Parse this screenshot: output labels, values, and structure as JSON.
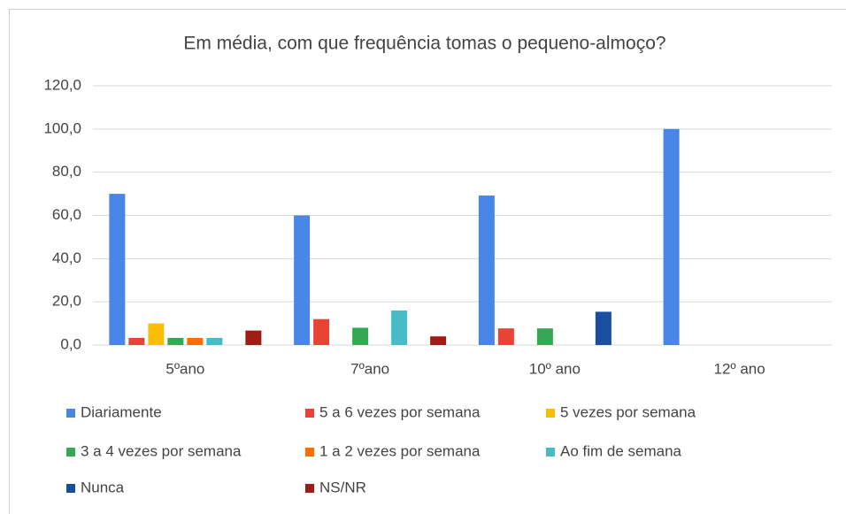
{
  "chart_data": {
    "type": "bar",
    "title": "Em média, com que frequência tomas o pequeno-almoço?",
    "categories": [
      "5ºano",
      "7ºano",
      "10º ano",
      "12º ano"
    ],
    "series": [
      {
        "name": "Diariamente",
        "color": "#4a86e8",
        "values": [
          70,
          60,
          69.2,
          100
        ]
      },
      {
        "name": "5 a 6 vezes por semana",
        "color": "#ea4335",
        "values": [
          3.3,
          12,
          7.7,
          0
        ]
      },
      {
        "name": "5 vezes por semana",
        "color": "#fbbc04",
        "values": [
          10,
          0,
          0,
          0
        ]
      },
      {
        "name": "3 a 4 vezes por semana",
        "color": "#34a853",
        "values": [
          3.3,
          8,
          7.7,
          0
        ]
      },
      {
        "name": "1 a 2 vezes por semana",
        "color": "#ff6d01",
        "values": [
          3.3,
          0,
          0,
          0
        ]
      },
      {
        "name": "Ao fim de semana",
        "color": "#46bdc6",
        "values": [
          3.3,
          16,
          0,
          0
        ]
      },
      {
        "name": "Nunca",
        "color": "#1a4ea0",
        "values": [
          0,
          0,
          15.4,
          0
        ]
      },
      {
        "name": "NS/NR",
        "color": "#9e1c14",
        "values": [
          6.7,
          4,
          0,
          0
        ]
      }
    ],
    "ylim": [
      0,
      120
    ],
    "yticks": [
      {
        "value": 0,
        "label": "0,0"
      },
      {
        "value": 20,
        "label": "20,0"
      },
      {
        "value": 40,
        "label": "40,0"
      },
      {
        "value": 60,
        "label": "60,0"
      },
      {
        "value": 80,
        "label": "80,0"
      },
      {
        "value": 100,
        "label": "100,0"
      },
      {
        "value": 120,
        "label": "120,0"
      }
    ],
    "grid": true,
    "legend": "bottom"
  }
}
